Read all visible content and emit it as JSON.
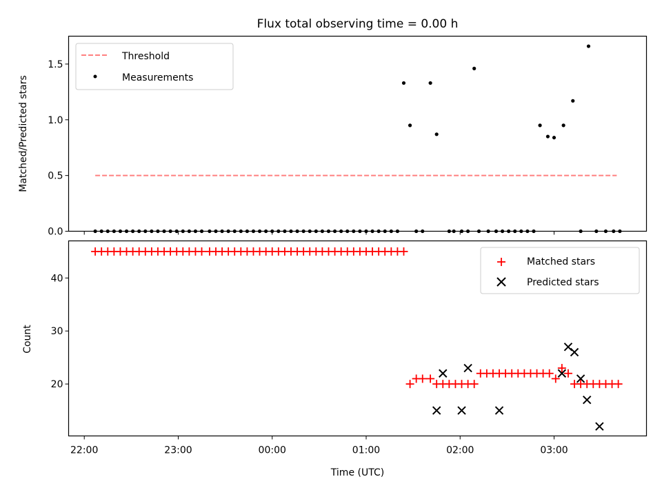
{
  "chart_data": [
    {
      "type": "scatter",
      "title": "Flux total observing time = 0.00 h",
      "xlabel": "",
      "ylabel": "Matched/Predicted stars",
      "ylim": [
        0,
        1.75
      ],
      "yticks": [
        "0.0",
        "0.5",
        "1.0",
        "1.5"
      ],
      "legend": {
        "placement": "top-left",
        "entries": [
          "Threshold",
          "Measurements"
        ]
      },
      "series": [
        {
          "name": "Threshold",
          "kind": "dashed-line",
          "color": "#ff7f7f",
          "x": [
            "22:07",
            "03:40"
          ],
          "y": [
            0.5,
            0.5
          ]
        },
        {
          "name": "Measurements",
          "kind": "points",
          "color": "#000000",
          "x": [
            "22:07",
            "22:11",
            "22:15",
            "22:19",
            "22:23",
            "22:27",
            "22:31",
            "22:35",
            "22:39",
            "22:43",
            "22:47",
            "22:51",
            "22:55",
            "22:59",
            "23:03",
            "23:07",
            "23:11",
            "23:15",
            "23:20",
            "23:24",
            "23:28",
            "23:32",
            "23:36",
            "23:40",
            "23:44",
            "23:48",
            "23:52",
            "23:56",
            "00:00",
            "00:04",
            "00:08",
            "00:12",
            "00:16",
            "00:20",
            "00:24",
            "00:28",
            "00:32",
            "00:36",
            "00:40",
            "00:44",
            "00:48",
            "00:52",
            "00:56",
            "01:00",
            "01:04",
            "01:08",
            "01:12",
            "01:16",
            "01:20",
            "01:24",
            "01:28",
            "01:32",
            "01:36",
            "01:41",
            "01:45",
            "01:53",
            "01:56",
            "02:01",
            "02:05",
            "02:09",
            "02:12",
            "02:18",
            "02:23",
            "02:27",
            "02:31",
            "02:35",
            "02:39",
            "02:43",
            "02:47",
            "02:51",
            "02:56",
            "03:00",
            "03:06",
            "03:12",
            "03:17",
            "03:22",
            "03:27",
            "03:33",
            "03:38",
            "03:42"
          ],
          "y": [
            0,
            0,
            0,
            0,
            0,
            0,
            0,
            0,
            0,
            0,
            0,
            0,
            0,
            0,
            0,
            0,
            0,
            0,
            0,
            0,
            0,
            0,
            0,
            0,
            0,
            0,
            0,
            0,
            0,
            0,
            0,
            0,
            0,
            0,
            0,
            0,
            0,
            0,
            0,
            0,
            0,
            0,
            0,
            0,
            0,
            0,
            0,
            0,
            0,
            1.33,
            0.95,
            0,
            0,
            1.33,
            0.87,
            0,
            0,
            0,
            0,
            1.46,
            0,
            0,
            0,
            0,
            0,
            0,
            0,
            0,
            0,
            0.95,
            0.85,
            0.84,
            0.95,
            1.17,
            0,
            1.66,
            0,
            0,
            0,
            0
          ]
        }
      ]
    },
    {
      "type": "scatter",
      "title": "",
      "xlabel": "Time (UTC)",
      "ylabel": "Count",
      "ylim": [
        10.2,
        47
      ],
      "yticks": [
        "20",
        "30",
        "40"
      ],
      "xticks": [
        "22:00",
        "23:00",
        "00:00",
        "01:00",
        "02:00",
        "03:00"
      ],
      "xlim": [
        "21:50",
        "03:59"
      ],
      "legend": {
        "placement": "top-right",
        "entries": [
          "Matched stars",
          "Predicted stars"
        ]
      },
      "series": [
        {
          "name": "Matched stars",
          "marker": "plus",
          "color": "#ff0000",
          "x": [
            "22:07",
            "22:11",
            "22:15",
            "22:19",
            "22:23",
            "22:27",
            "22:31",
            "22:35",
            "22:39",
            "22:43",
            "22:47",
            "22:51",
            "22:55",
            "22:59",
            "23:03",
            "23:07",
            "23:11",
            "23:15",
            "23:20",
            "23:24",
            "23:28",
            "23:32",
            "23:36",
            "23:40",
            "23:44",
            "23:48",
            "23:52",
            "23:56",
            "00:00",
            "00:04",
            "00:08",
            "00:12",
            "00:16",
            "00:20",
            "00:24",
            "00:28",
            "00:32",
            "00:36",
            "00:40",
            "00:44",
            "00:48",
            "00:52",
            "00:56",
            "01:00",
            "01:04",
            "01:08",
            "01:12",
            "01:16",
            "01:20",
            "01:24",
            "01:28",
            "01:32",
            "01:36",
            "01:41",
            "01:45",
            "01:49",
            "01:53",
            "01:57",
            "02:01",
            "02:05",
            "02:09",
            "02:13",
            "02:17",
            "02:21",
            "02:25",
            "02:29",
            "02:33",
            "02:37",
            "02:41",
            "02:45",
            "02:49",
            "02:53",
            "02:57",
            "03:01",
            "03:05",
            "03:09",
            "03:13",
            "03:17",
            "03:21",
            "03:25",
            "03:29",
            "03:33",
            "03:37",
            "03:41"
          ],
          "y": [
            45,
            45,
            45,
            45,
            45,
            45,
            45,
            45,
            45,
            45,
            45,
            45,
            45,
            45,
            45,
            45,
            45,
            45,
            45,
            45,
            45,
            45,
            45,
            45,
            45,
            45,
            45,
            45,
            45,
            45,
            45,
            45,
            45,
            45,
            45,
            45,
            45,
            45,
            45,
            45,
            45,
            45,
            45,
            45,
            45,
            45,
            45,
            45,
            45,
            45,
            20,
            21,
            21,
            21,
            20,
            20,
            20,
            20,
            20,
            20,
            20,
            22,
            22,
            22,
            22,
            22,
            22,
            22,
            22,
            22,
            22,
            22,
            22,
            21,
            23,
            22,
            20,
            20,
            20,
            20,
            20,
            20,
            20,
            20
          ]
        },
        {
          "name": "Predicted stars",
          "marker": "x",
          "color": "#000000",
          "x": [
            "01:45",
            "01:49",
            "01:53",
            "01:57",
            "02:01",
            "02:05",
            "02:09",
            "02:13",
            "02:17",
            "02:21",
            "02:25",
            "02:29",
            "02:33",
            "02:37",
            "02:41",
            "02:45",
            "02:49",
            "02:53",
            "02:57",
            "03:01",
            "03:05",
            "03:09",
            "03:13",
            "03:17",
            "03:21",
            "03:25",
            "03:29",
            "03:33",
            "03:37",
            "03:41"
          ],
          "y": [
            15,
            22,
            null,
            null,
            15,
            23,
            null,
            null,
            null,
            null,
            15,
            null,
            null,
            null,
            null,
            null,
            null,
            null,
            null,
            null,
            22,
            27,
            26,
            21,
            17,
            null,
            12,
            null,
            null,
            null
          ]
        }
      ]
    }
  ]
}
